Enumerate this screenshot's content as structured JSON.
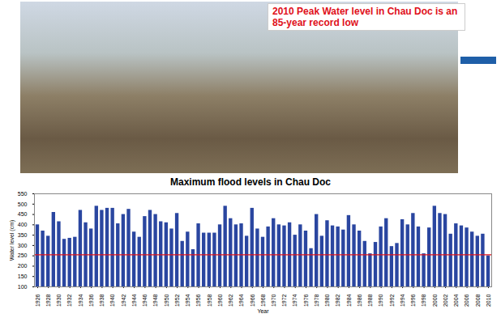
{
  "chart_data": {
    "type": "bar",
    "title": "Maximum flood levels in Chau Doc",
    "annotation": "2010 Peak Water level in Chau Doc is an 85-year record low",
    "x_label": "Year",
    "y_label": "Water level (cm)",
    "x": [
      1926,
      1927,
      1928,
      1929,
      1930,
      1931,
      1932,
      1933,
      1934,
      1935,
      1936,
      1937,
      1938,
      1939,
      1940,
      1941,
      1942,
      1943,
      1944,
      1945,
      1946,
      1947,
      1948,
      1949,
      1950,
      1951,
      1952,
      1953,
      1954,
      1955,
      1956,
      1957,
      1958,
      1959,
      1960,
      1961,
      1962,
      1963,
      1964,
      1965,
      1966,
      1967,
      1968,
      1969,
      1970,
      1971,
      1972,
      1973,
      1974,
      1975,
      1976,
      1977,
      1978,
      1979,
      1980,
      1981,
      1982,
      1983,
      1984,
      1985,
      1986,
      1987,
      1988,
      1989,
      1990,
      1991,
      1992,
      1993,
      1994,
      1995,
      1996,
      1997,
      1998,
      1999,
      2000,
      2001,
      2002,
      2003,
      2004,
      2005,
      2006,
      2007,
      2008,
      2009,
      2010
    ],
    "values": [
      400,
      370,
      345,
      460,
      415,
      330,
      335,
      340,
      470,
      410,
      380,
      490,
      470,
      480,
      480,
      405,
      450,
      475,
      365,
      340,
      440,
      470,
      450,
      415,
      410,
      380,
      455,
      320,
      365,
      280,
      405,
      360,
      360,
      360,
      400,
      490,
      430,
      400,
      405,
      345,
      480,
      380,
      340,
      390,
      430,
      400,
      395,
      410,
      350,
      400,
      370,
      285,
      450,
      345,
      420,
      395,
      390,
      375,
      445,
      400,
      370,
      320,
      260,
      315,
      390,
      430,
      295,
      310,
      425,
      400,
      455,
      390,
      260,
      385,
      490,
      455,
      450,
      355,
      405,
      395,
      385,
      365,
      345,
      355,
      250
    ],
    "color": "#2a46a0",
    "threshold": 255,
    "threshold_color": "#e0101a",
    "xlim": [
      1925.4,
      2010.6
    ],
    "xticks": [
      1926,
      1928,
      1930,
      1932,
      1934,
      1936,
      1938,
      1940,
      1942,
      1944,
      1946,
      1948,
      1950,
      1952,
      1954,
      1956,
      1958,
      1960,
      1962,
      1964,
      1966,
      1968,
      1970,
      1972,
      1974,
      1976,
      1978,
      1980,
      1982,
      1984,
      1986,
      1988,
      1990,
      1992,
      1994,
      1996,
      1998,
      2000,
      2002,
      2004,
      2006,
      2008,
      2010
    ],
    "ylim": [
      100,
      550
    ],
    "yticks": [
      100,
      150,
      200,
      250,
      300,
      350,
      400,
      450,
      500,
      550
    ],
    "grid": false
  }
}
